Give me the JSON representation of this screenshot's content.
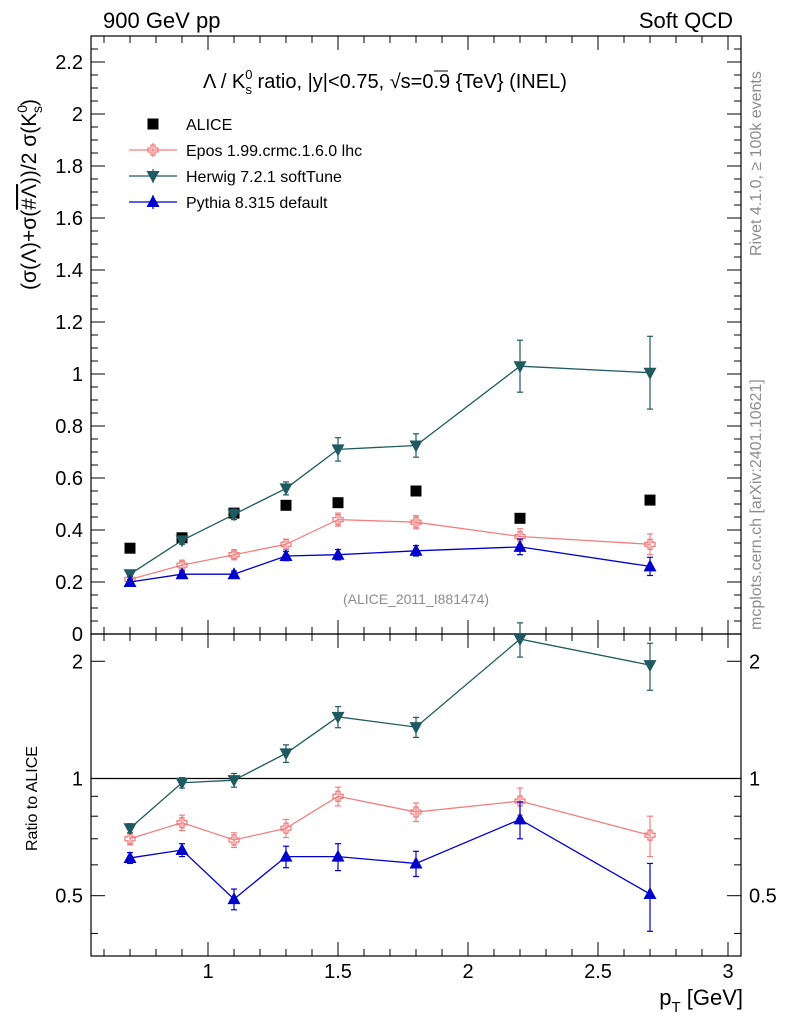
{
  "header": {
    "left": "900 GeV pp",
    "right": "Soft QCD"
  },
  "side_text": {
    "rivet": "Rivet 4.1.0, ≥ 100k events",
    "mcplots": "mcplots.cern.ch [arXiv:2401.10621]"
  },
  "chart_data": [
    {
      "type": "scatter",
      "title": "Λ / K⁰ₛ ratio, |y|<0.75, √s=0.9 {TeV} (INEL)",
      "title_parts": {
        "pre": "Λ / K",
        "sup": "0",
        "sub": "s",
        "post": " ratio, |y|<0.75, ",
        "root": "√s",
        "tail": "=0.9 {TeV} (INEL)"
      },
      "ylabel": "(σ(Λ)+σ(#Λ))/2 σ(K⁰ₛ)",
      "ylabel_parts": {
        "a": "(σ(Λ)+σ(",
        "b": "#Λ",
        "c": "))/2 σ(K",
        "sup": "0",
        "sub": "s",
        "d": ")"
      },
      "xlabel": "",
      "analysis_tag": "(ALICE_2011_I881474)",
      "xlim": [
        0.55,
        3.05
      ],
      "ylim": [
        0,
        2.3
      ],
      "yticks": [
        0,
        0.2,
        0.4,
        0.6,
        0.8,
        1,
        1.2,
        1.4,
        1.6,
        1.8,
        2,
        2.2
      ],
      "ytick_labels": [
        "0",
        "0.2",
        "0.4",
        "0.6",
        "0.8",
        "1",
        "1.2",
        "1.4",
        "1.6",
        "1.8",
        "2",
        "2.2"
      ],
      "x": [
        0.7,
        0.9,
        1.1,
        1.3,
        1.5,
        1.8,
        2.2,
        2.7
      ],
      "series": [
        {
          "name": "ALICE",
          "key": "alice",
          "color": "#000000",
          "marker": "square",
          "line": false,
          "values": [
            0.33,
            0.37,
            0.465,
            0.495,
            0.505,
            0.55,
            0.445,
            0.515
          ],
          "errors": [
            0,
            0,
            0,
            0,
            0,
            0,
            0,
            0
          ]
        },
        {
          "name": "Epos 1.99.crmc.1.6.0 lhc",
          "key": "epos",
          "color": "#f08080",
          "marker": "open-cross",
          "line": true,
          "values": [
            0.21,
            0.265,
            0.305,
            0.345,
            0.44,
            0.43,
            0.375,
            0.345
          ],
          "errors": [
            0.01,
            0.015,
            0.015,
            0.02,
            0.025,
            0.025,
            0.03,
            0.04
          ]
        },
        {
          "name": "Herwig 7.2.1 softTune",
          "key": "herwig",
          "color": "#1f5a60",
          "marker": "triangle-down",
          "line": true,
          "values": [
            0.23,
            0.36,
            0.46,
            0.56,
            0.71,
            0.725,
            1.03,
            1.005
          ],
          "errors": [
            0.01,
            0.015,
            0.02,
            0.025,
            0.045,
            0.045,
            0.1,
            0.14
          ]
        },
        {
          "name": "Pythia 8.315 default",
          "key": "pythia",
          "color": "#0000cc",
          "marker": "triangle-up",
          "line": true,
          "values": [
            0.2,
            0.23,
            0.23,
            0.3,
            0.305,
            0.32,
            0.335,
            0.26
          ],
          "errors": [
            0.01,
            0.012,
            0.012,
            0.018,
            0.02,
            0.02,
            0.03,
            0.035
          ]
        }
      ]
    },
    {
      "type": "scatter",
      "title": "",
      "ylabel": "Ratio to ALICE",
      "xlabel": "p_T [GeV]",
      "xlabel_parts": {
        "p": "p",
        "sub": "T",
        "rest": " [GeV]"
      },
      "xlim": [
        0.55,
        3.05
      ],
      "ylim": [
        0.35,
        2.35
      ],
      "yscale": "log",
      "reference_line": 1,
      "yticks": [
        0.5,
        1,
        2
      ],
      "ytick_labels": [
        "0.5",
        "1",
        "2"
      ],
      "xticks": [
        1,
        1.5,
        2,
        2.5,
        3
      ],
      "xtick_labels": [
        "1",
        "1.5",
        "2",
        "2.5",
        "3"
      ],
      "x": [
        0.7,
        0.9,
        1.1,
        1.3,
        1.5,
        1.8,
        2.2,
        2.7
      ],
      "series": [
        {
          "name": "Epos 1.99.crmc.1.6.0 lhc",
          "key": "epos",
          "color": "#f08080",
          "marker": "open-cross",
          "line": true,
          "values": [
            0.7,
            0.77,
            0.695,
            0.745,
            0.9,
            0.82,
            0.875,
            0.715
          ],
          "errors": [
            0.025,
            0.035,
            0.03,
            0.04,
            0.05,
            0.045,
            0.07,
            0.085
          ]
        },
        {
          "name": "Herwig 7.2.1 softTune",
          "key": "herwig",
          "color": "#1f5a60",
          "marker": "triangle-down",
          "line": true,
          "values": [
            0.745,
            0.975,
            0.99,
            1.16,
            1.44,
            1.355,
            2.28,
            1.955
          ],
          "errors": [
            0.02,
            0.03,
            0.04,
            0.06,
            0.09,
            0.08,
            0.23,
            0.27
          ]
        },
        {
          "name": "Pythia 8.315 default",
          "key": "pythia",
          "color": "#0000cc",
          "marker": "triangle-up",
          "line": true,
          "values": [
            0.625,
            0.655,
            0.49,
            0.63,
            0.63,
            0.605,
            0.785,
            0.505
          ],
          "errors": [
            0.02,
            0.025,
            0.03,
            0.04,
            0.05,
            0.045,
            0.085,
            0.1
          ]
        }
      ]
    }
  ]
}
